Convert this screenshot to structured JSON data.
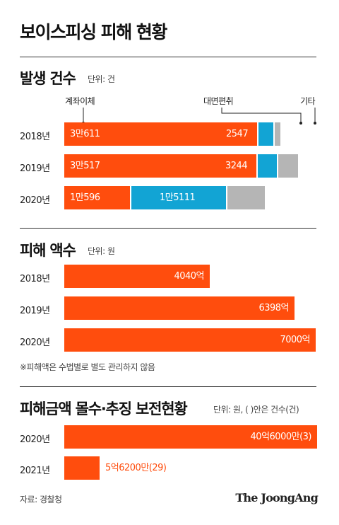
{
  "title": "보이스피싱 피해 현황",
  "source": "자료: 경찰청",
  "logo": "The JoongAng",
  "colors": {
    "transfer": "#ff4d0d",
    "face": "#12a4d4",
    "other": "#b5b5b5"
  },
  "chart_data": [
    {
      "type": "bar",
      "stacked": true,
      "orientation": "horizontal",
      "title": "발생 건수",
      "unit": "단위: 건",
      "categories": [
        "2018년",
        "2019년",
        "2020년"
      ],
      "series": [
        {
          "name": "계좌이체",
          "values": [
            30611,
            30517,
            10596
          ],
          "labels": [
            "3만611",
            "3만517",
            "1만596"
          ]
        },
        {
          "name": "대면편취",
          "values": [
            2547,
            3244,
            15111
          ],
          "labels": [
            "2547",
            "3244",
            "1만5111"
          ]
        },
        {
          "name": "기타",
          "values": [
            877,
            3144,
            5930
          ],
          "labels": [
            "",
            "",
            ""
          ]
        }
      ],
      "total_max": 40000
    },
    {
      "type": "bar",
      "orientation": "horizontal",
      "title": "피해 액수",
      "unit": "단위: 원",
      "categories": [
        "2018년",
        "2019년",
        "2020년"
      ],
      "values": [
        4040,
        6398,
        7000
      ],
      "labels": [
        "4040억",
        "6398억",
        "7000억"
      ],
      "max": 7050,
      "note": "※피해액은 수법별로 별도 관리하지 않음"
    },
    {
      "type": "bar",
      "orientation": "horizontal",
      "title": "피해금액 몰수·추징 보전현황",
      "unit": "단위: 원, ( )안은 건수(건)",
      "categories": [
        "2020년",
        "2021년"
      ],
      "values": [
        4060,
        562
      ],
      "counts": [
        3,
        29
      ],
      "labels": [
        "40억6000만(3)",
        "5억6200만(29)"
      ],
      "max": 4070
    }
  ]
}
